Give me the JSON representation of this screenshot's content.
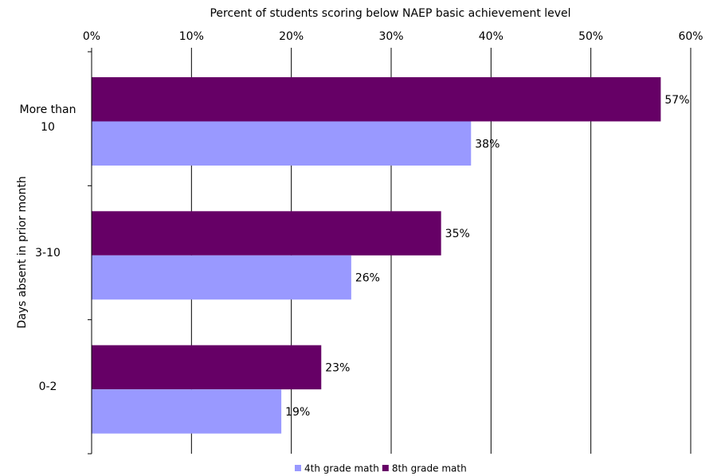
{
  "chart_data": {
    "type": "hbar",
    "title": "Percent of students scoring below NAEP basic achievement level",
    "y_label": "Days absent in prior month",
    "categories": [
      "More than 10",
      "3-10",
      "0-2"
    ],
    "series": [
      {
        "name": "4th grade math",
        "color": "#9999ff",
        "values": [
          38,
          26,
          19
        ],
        "value_labels": [
          "38%",
          "26%",
          "19%"
        ]
      },
      {
        "name": "8th grade math",
        "color": "#660066",
        "values": [
          57,
          35,
          23
        ],
        "value_labels": [
          "57%",
          "35%",
          "23%"
        ]
      }
    ],
    "xlim": [
      0,
      60
    ],
    "xticks": [
      {
        "value": 0,
        "label": "0%"
      },
      {
        "value": 10,
        "label": "10%"
      },
      {
        "value": 20,
        "label": "20%"
      },
      {
        "value": 30,
        "label": "30%"
      },
      {
        "value": 40,
        "label": "40%"
      },
      {
        "value": 50,
        "label": "50%"
      },
      {
        "value": 60,
        "label": "60%"
      }
    ],
    "grid": true,
    "legend": "bottom"
  }
}
